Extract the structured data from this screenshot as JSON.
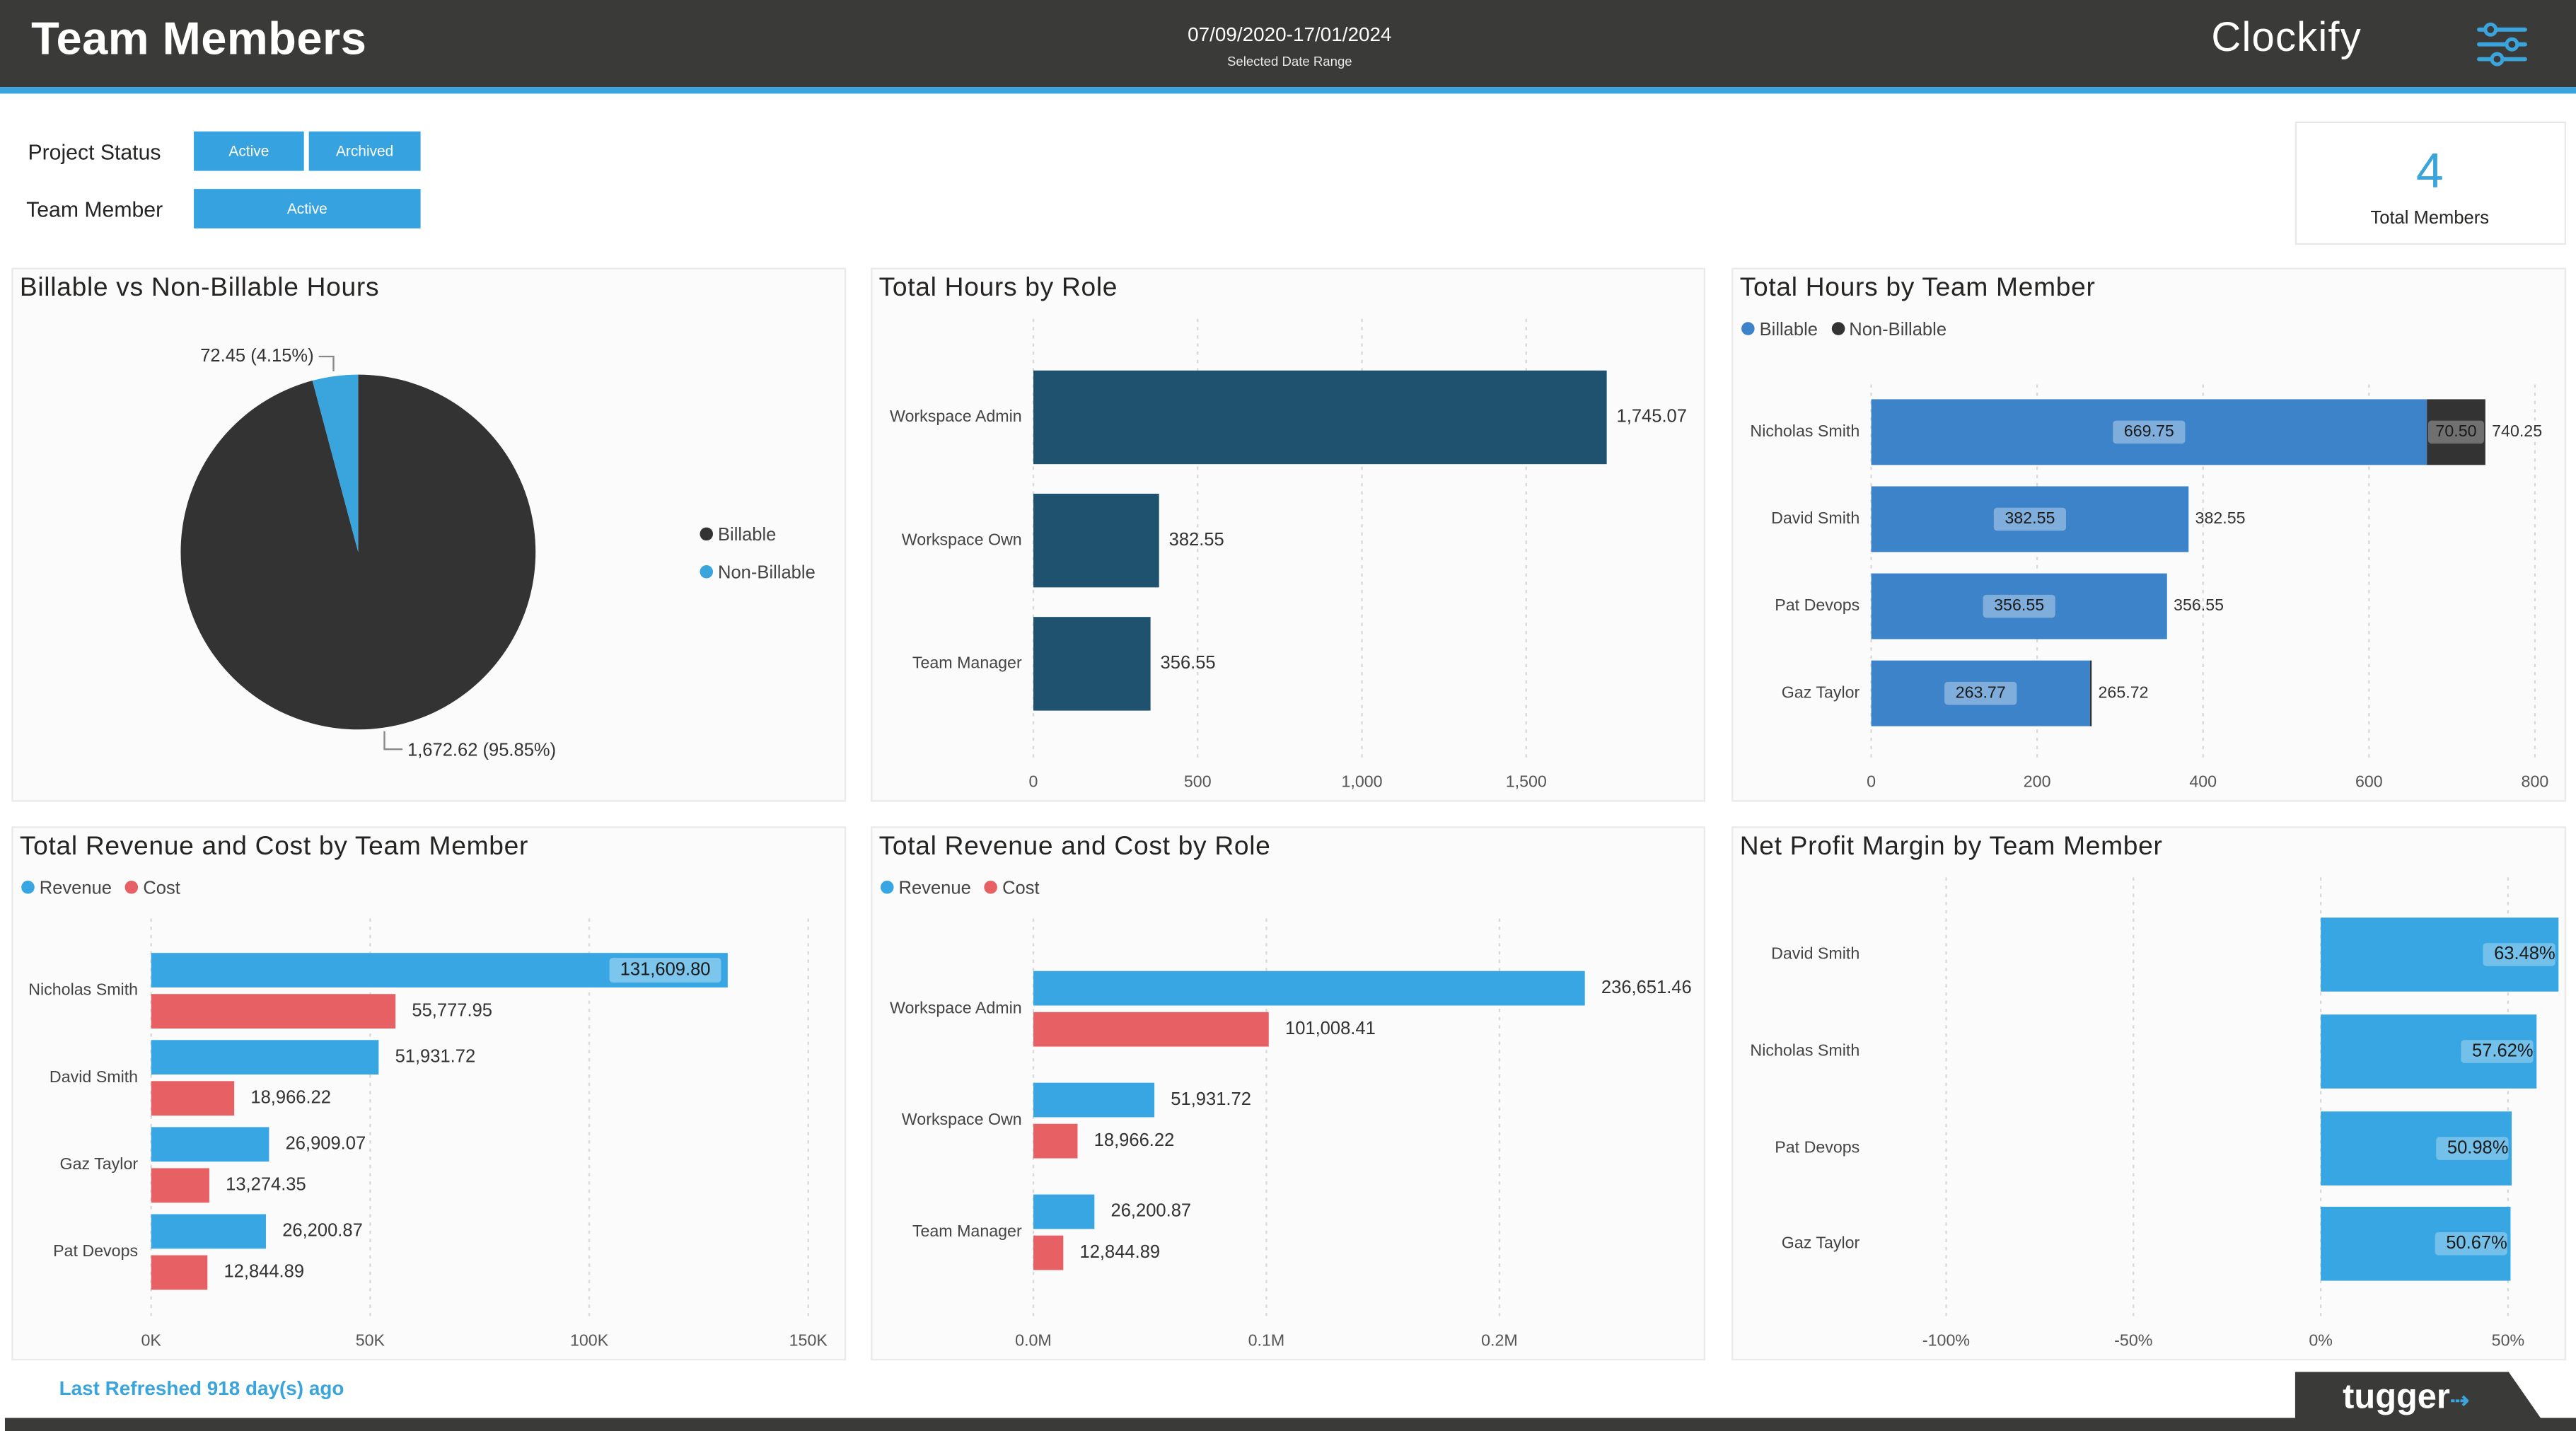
{
  "header": {
    "title": "Team Members",
    "date_range": "07/09/2020-17/01/2024",
    "date_range_caption": "Selected Date Range",
    "logo": "Clockify",
    "filter_icon": "sliders-icon"
  },
  "filters": {
    "project_status_label": "Project Status",
    "project_status_options": [
      "Active",
      "Archived"
    ],
    "team_member_label": "Team Member",
    "team_member_options": [
      "Active"
    ]
  },
  "kpi": {
    "value": "4",
    "label": "Total Members"
  },
  "colors": {
    "header": "#3a3a39",
    "accent": "#3aa4dd",
    "billable_dark": "#333333",
    "role_bar": "#1e526e",
    "member_bar": "#3c83c9",
    "revenue": "#37a6e3",
    "cost": "#e66064"
  },
  "panels": {
    "pie": {
      "title": "Billable vs Non-Billable Hours",
      "legend": [
        "Billable",
        "Non-Billable"
      ],
      "label_small": "72.45 (4.15%)",
      "label_large": "1,672.62 (95.85%)"
    },
    "role_hours": {
      "title": "Total Hours by Role"
    },
    "member_hours": {
      "title": "Total Hours by Team Member",
      "legend": [
        "Billable",
        "Non-Billable"
      ]
    },
    "member_revenue": {
      "title": "Total Revenue and Cost by Team Member",
      "legend": [
        "Revenue",
        "Cost"
      ]
    },
    "role_revenue": {
      "title": "Total Revenue and Cost by Role",
      "legend": [
        "Revenue",
        "Cost"
      ]
    },
    "margin": {
      "title": "Net Profit Margin by Team Member"
    }
  },
  "chart_data": [
    {
      "type": "pie",
      "title": "Billable vs Non-Billable Hours",
      "slices": [
        {
          "name": "Billable",
          "value": 1672.62,
          "percent": 95.85,
          "label": "1,672.62 (95.85%)"
        },
        {
          "name": "Non-Billable",
          "value": 72.45,
          "percent": 4.15,
          "label": "72.45 (4.15%)"
        }
      ],
      "legend": "right"
    },
    {
      "type": "bar",
      "title": "Total Hours by Role",
      "orientation": "horizontal",
      "categories": [
        "Workspace Admin",
        "Workspace Own",
        "Team Manager"
      ],
      "values": [
        1745.07,
        382.55,
        356.55
      ],
      "value_labels": [
        "1,745.07",
        "382.55",
        "356.55"
      ],
      "xlim": [
        0,
        1900
      ],
      "xticks": [
        0,
        500,
        1000,
        1500
      ],
      "xtick_labels": [
        "0",
        "500",
        "1,000",
        "1,500"
      ],
      "grid": true
    },
    {
      "type": "bar",
      "title": "Total Hours by Team Member",
      "orientation": "horizontal",
      "stacked": true,
      "categories": [
        "Nicholas Smith",
        "David Smith",
        "Pat Devops",
        "Gaz Taylor"
      ],
      "series": [
        {
          "name": "Billable",
          "values": [
            669.75,
            382.55,
            356.55,
            263.77
          ],
          "labels": [
            "669.75",
            "382.55",
            "356.55",
            "263.77"
          ]
        },
        {
          "name": "Non-Billable",
          "values": [
            70.5,
            0,
            0,
            1.95
          ],
          "labels": [
            "70.50",
            "",
            "",
            ""
          ]
        }
      ],
      "totals": [
        "740.25",
        "382.55",
        "356.55",
        "265.72"
      ],
      "xlim": [
        0,
        800
      ],
      "xticks": [
        0,
        200,
        400,
        600,
        800
      ],
      "xtick_labels": [
        "0",
        "200",
        "400",
        "600",
        "800"
      ],
      "legend": "top-left",
      "grid": true
    },
    {
      "type": "bar",
      "title": "Total Revenue and Cost by Team Member",
      "orientation": "horizontal",
      "categories": [
        "Nicholas Smith",
        "David Smith",
        "Gaz Taylor",
        "Pat Devops"
      ],
      "series": [
        {
          "name": "Revenue",
          "values": [
            131609.8,
            51931.72,
            26909.07,
            26200.87
          ],
          "labels": [
            "131,609.80",
            "51,931.72",
            "26,909.07",
            "26,200.87"
          ]
        },
        {
          "name": "Cost",
          "values": [
            55777.95,
            18966.22,
            13274.35,
            12844.89
          ],
          "labels": [
            "55,777.95",
            "18,966.22",
            "13,274.35",
            "12,844.89"
          ]
        }
      ],
      "xlim": [
        0,
        150000
      ],
      "xticks": [
        0,
        50000,
        100000,
        150000
      ],
      "xtick_labels": [
        "0K",
        "50K",
        "100K",
        "150K"
      ],
      "legend": "top-left",
      "grid": true
    },
    {
      "type": "bar",
      "title": "Total Revenue and Cost by Role",
      "orientation": "horizontal",
      "categories": [
        "Workspace Admin",
        "Workspace Own",
        "Team Manager"
      ],
      "series": [
        {
          "name": "Revenue",
          "values": [
            236651.46,
            51931.72,
            26200.87
          ],
          "labels": [
            "236,651.46",
            "51,931.72",
            "26,200.87"
          ]
        },
        {
          "name": "Cost",
          "values": [
            101008.41,
            18966.22,
            12844.89
          ],
          "labels": [
            "101,008.41",
            "18,966.22",
            "12,844.89"
          ]
        }
      ],
      "xlim": [
        0,
        270000
      ],
      "xticks": [
        0,
        100000,
        200000
      ],
      "xtick_labels": [
        "0.0M",
        "0.1M",
        "0.2M"
      ],
      "legend": "top-left",
      "grid": true
    },
    {
      "type": "bar",
      "title": "Net Profit Margin by Team Member",
      "orientation": "horizontal",
      "categories": [
        "David Smith",
        "Nicholas Smith",
        "Pat Devops",
        "Gaz Taylor"
      ],
      "values": [
        63.48,
        57.62,
        50.98,
        50.67
      ],
      "value_labels": [
        "63.48%",
        "57.62%",
        "50.98%",
        "50.67%"
      ],
      "xlim": [
        -120,
        62
      ],
      "xticks": [
        -100,
        -50,
        0,
        50
      ],
      "xtick_labels": [
        "-100%",
        "-50%",
        "0%",
        "50%"
      ],
      "grid": true
    }
  ],
  "footer": {
    "last_refreshed": "Last Refreshed 918 day(s) ago",
    "brand": "tugger"
  }
}
